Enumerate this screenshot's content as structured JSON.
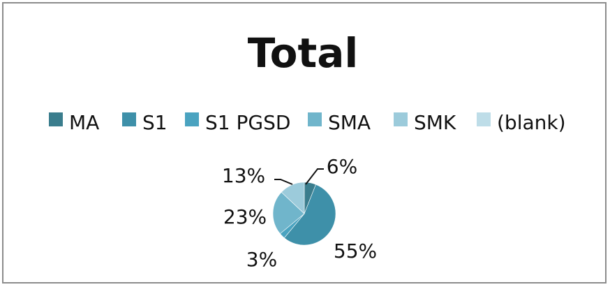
{
  "chart_data": {
    "type": "pie",
    "title": "Total",
    "legend_position": "top",
    "categories": [
      "MA",
      "S1",
      "S1 PGSD",
      "SMA",
      "SMK",
      "(blank)"
    ],
    "values": [
      6,
      55,
      3,
      23,
      13,
      0
    ],
    "data_labels": [
      "6%",
      "55%",
      "3%",
      "23%",
      "13%",
      ""
    ],
    "colors": [
      "#3a7d8d",
      "#3e90a9",
      "#4aa3c0",
      "#70b5cb",
      "#9ccbdb",
      "#bedde8"
    ]
  }
}
